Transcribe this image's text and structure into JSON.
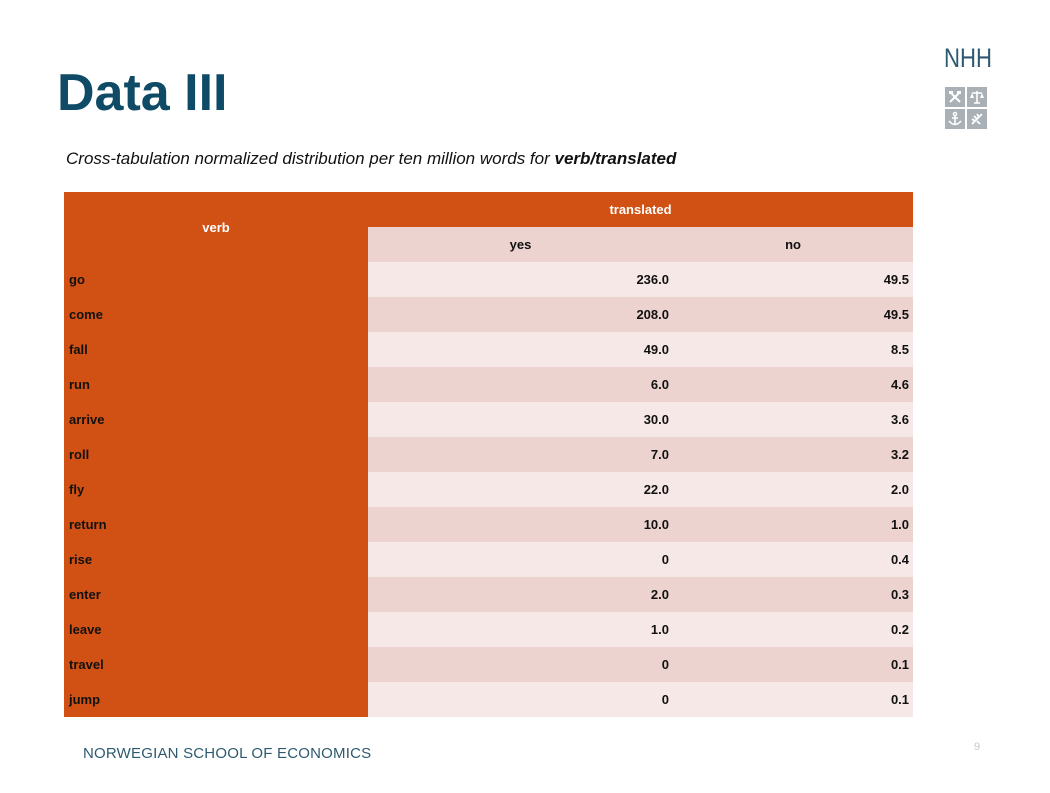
{
  "slide": {
    "title": "Data III",
    "subtitle_prefix": "Cross-tabulation normalized distribution per ten million words for ",
    "subtitle_bold": "verb/translated",
    "logo_text": "NHH",
    "footer": "NORWEGIAN SCHOOL OF ECONOMICS",
    "page_number": "9"
  },
  "table": {
    "row_header": "verb",
    "column_group": "translated",
    "columns": [
      "yes",
      "no"
    ],
    "rows": [
      {
        "verb": "go",
        "yes": "236.0",
        "no": "49.5"
      },
      {
        "verb": "come",
        "yes": "208.0",
        "no": "49.5"
      },
      {
        "verb": "fall",
        "yes": "49.0",
        "no": "8.5"
      },
      {
        "verb": "run",
        "yes": "6.0",
        "no": "4.6"
      },
      {
        "verb": "arrive",
        "yes": "30.0",
        "no": "3.6"
      },
      {
        "verb": "roll",
        "yes": "7.0",
        "no": "3.2"
      },
      {
        "verb": "fly",
        "yes": "22.0",
        "no": "2.0"
      },
      {
        "verb": "return",
        "yes": "10.0",
        "no": "1.0"
      },
      {
        "verb": "rise",
        "yes": "0",
        "no": "0.4"
      },
      {
        "verb": "enter",
        "yes": "2.0",
        "no": "0.3"
      },
      {
        "verb": "leave",
        "yes": "1.0",
        "no": "0.2"
      },
      {
        "verb": "travel",
        "yes": "0",
        "no": "0.1"
      },
      {
        "verb": "jump",
        "yes": "0",
        "no": "0.1"
      }
    ]
  },
  "colors": {
    "title": "#0f4a66",
    "header_orange": "#d05113",
    "row_light": "#f6e8e6",
    "row_dark": "#ecd3cf",
    "footer": "#2e5a70"
  },
  "icons": [
    "tools-icon",
    "scales-icon",
    "anchor-icon",
    "wheat-icon"
  ]
}
